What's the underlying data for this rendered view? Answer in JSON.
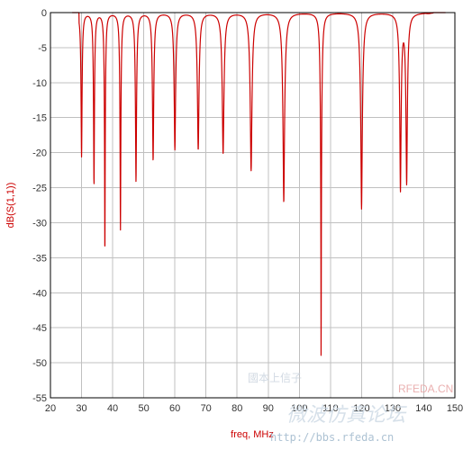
{
  "chart_data": {
    "type": "line",
    "xlabel": "freq, MHz",
    "ylabel": "dB(S(1,1))",
    "xlim": [
      20,
      150
    ],
    "ylim": [
      -55,
      0
    ],
    "x_ticks": [
      "20",
      "30",
      "40",
      "50",
      "60",
      "70",
      "80",
      "90",
      "100",
      "110",
      "120",
      "130",
      "140",
      "150"
    ],
    "y_ticks": [
      "0",
      "-5",
      "-10",
      "-15",
      "-20",
      "-25",
      "-30",
      "-35",
      "-40",
      "-45",
      "-50",
      "-55"
    ],
    "grid": true,
    "line_color": "#cc0000",
    "series": [
      {
        "notches": [
          {
            "f": 30.0,
            "depth": -20.5,
            "w": 0.35
          },
          {
            "f": 34.0,
            "depth": -24.5,
            "w": 0.35
          },
          {
            "f": 37.5,
            "depth": -35.0,
            "w": 0.35
          },
          {
            "f": 42.5,
            "depth": -31.0,
            "w": 0.38
          },
          {
            "f": 47.5,
            "depth": -24.0,
            "w": 0.42
          },
          {
            "f": 53.0,
            "depth": -21.0,
            "w": 0.45
          },
          {
            "f": 60.0,
            "depth": -19.5,
            "w": 0.5
          },
          {
            "f": 67.5,
            "depth": -19.5,
            "w": 0.55
          },
          {
            "f": 75.5,
            "depth": -20.0,
            "w": 0.6
          },
          {
            "f": 84.5,
            "depth": -22.5,
            "w": 0.65
          },
          {
            "f": 95.0,
            "depth": -27.0,
            "w": 0.7
          },
          {
            "f": 107.0,
            "depth": -51.5,
            "w": 0.5
          },
          {
            "f": 120.0,
            "depth": -28.0,
            "w": 0.7
          },
          {
            "f": 132.5,
            "depth": -25.0,
            "w": 0.55
          },
          {
            "f": 134.5,
            "depth": -24.0,
            "w": 0.55
          }
        ],
        "baseline": 0,
        "band_end": 143
      }
    ]
  },
  "watermark": {
    "line1": "國本上信子",
    "line2": "微波仿真论坛",
    "url": "http://bbs.rfeda.cn",
    "brand": "RFEDA.CN"
  }
}
